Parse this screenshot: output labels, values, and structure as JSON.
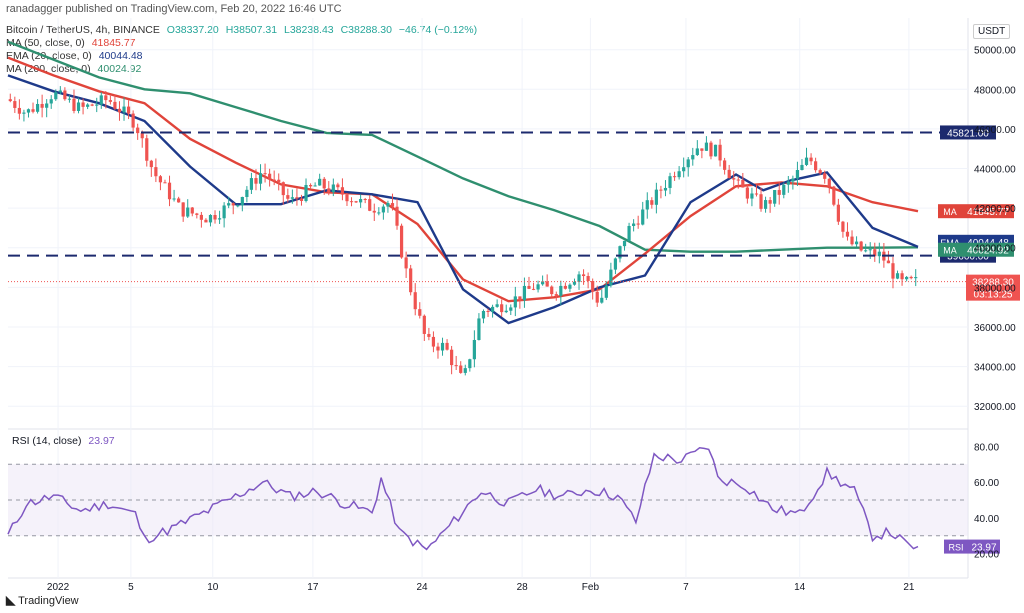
{
  "header": "ranadagger published on TradingView.com, Feb 20, 2022 16:46 UTC",
  "legend": {
    "main": {
      "name": "Bitcoin / TetherUS, 4h, BINANCE",
      "o": "O38337.20",
      "h": "H38507.31",
      "l": "L38238.43",
      "c": "C38288.30",
      "chg": "−46.74 (−0.12%)"
    },
    "ma50": {
      "name": "MA (50, close, 0)",
      "value": "41845.77"
    },
    "ema20": {
      "name": "EMA (20, close, 0)",
      "value": "40044.48"
    },
    "ma200": {
      "name": "MA (200, close, 0)",
      "value": "40024.92"
    },
    "rsi": {
      "name": "RSI (14, close)",
      "value": "23.97"
    }
  },
  "currency": "USDT",
  "footer": "TradingView",
  "colors": {
    "up": "#26a69a",
    "down": "#ef5350",
    "ma50": "#e0443a",
    "ema20": "#1e3a8a",
    "ma200": "#2f8f6f",
    "rsi": "#7e57c2",
    "level": "#1c2a6e"
  },
  "chart_data": [
    {
      "type": "candlestick",
      "title": "Bitcoin / TetherUS, 4h, BINANCE",
      "x_ticks": [
        "2022",
        "5",
        "10",
        "17",
        "24",
        "28",
        "Feb",
        "7",
        "14",
        "21"
      ],
      "y_ticks": [
        "32000.00",
        "34000.00",
        "36000.00",
        "38000.00",
        "40000.00",
        "42000.00",
        "44000.00",
        "46000.00",
        "48000.00",
        "50000.00"
      ],
      "ylim": [
        31000,
        51600
      ],
      "horizontal_levels": [
        {
          "label": "45821.00",
          "value": 45821
        },
        {
          "label": "39600.00",
          "value": 39600
        }
      ],
      "price_labels": [
        {
          "label": "MA",
          "value": "41845.77",
          "y": 41845.77,
          "color": "#e0443a"
        },
        {
          "label": "EMA",
          "value": "40044.48",
          "y": 40300,
          "color": "#1e3a8a"
        },
        {
          "label": "MA",
          "value": "40024.92",
          "y": 39900,
          "color": "#2f8f6f"
        }
      ],
      "last_price": {
        "value": "38288.30",
        "countdown": "03:13:25"
      },
      "series": [
        {
          "name": "MA (50, close, 0)",
          "points": [
            [
              0,
              49600
            ],
            [
              0.05,
              48700
            ],
            [
              0.1,
              47900
            ],
            [
              0.15,
              47300
            ],
            [
              0.2,
              45500
            ],
            [
              0.25,
              44300
            ],
            [
              0.3,
              43200
            ],
            [
              0.35,
              42800
            ],
            [
              0.4,
              42700
            ],
            [
              0.45,
              41200
            ],
            [
              0.5,
              38400
            ],
            [
              0.55,
              37300
            ],
            [
              0.6,
              37500
            ],
            [
              0.65,
              37900
            ],
            [
              0.7,
              39700
            ],
            [
              0.75,
              41600
            ],
            [
              0.8,
              43100
            ],
            [
              0.85,
              43300
            ],
            [
              0.9,
              43100
            ],
            [
              0.95,
              42300
            ],
            [
              1,
              41845
            ]
          ]
        },
        {
          "name": "EMA (20, close, 0)",
          "points": [
            [
              0,
              48700
            ],
            [
              0.05,
              47900
            ],
            [
              0.1,
              47300
            ],
            [
              0.15,
              46400
            ],
            [
              0.2,
              44100
            ],
            [
              0.25,
              42200
            ],
            [
              0.3,
              42200
            ],
            [
              0.35,
              42900
            ],
            [
              0.4,
              42700
            ],
            [
              0.45,
              42300
            ],
            [
              0.5,
              37900
            ],
            [
              0.55,
              36200
            ],
            [
              0.6,
              37000
            ],
            [
              0.65,
              38000
            ],
            [
              0.7,
              38600
            ],
            [
              0.75,
              42300
            ],
            [
              0.8,
              43700
            ],
            [
              0.83,
              42900
            ],
            [
              0.86,
              43400
            ],
            [
              0.9,
              43800
            ],
            [
              0.95,
              41000
            ],
            [
              1,
              40044
            ]
          ]
        },
        {
          "name": "MA (200, close, 0)",
          "points": [
            [
              0,
              50400
            ],
            [
              0.05,
              49500
            ],
            [
              0.1,
              48600
            ],
            [
              0.15,
              48000
            ],
            [
              0.2,
              47800
            ],
            [
              0.25,
              47100
            ],
            [
              0.3,
              46400
            ],
            [
              0.35,
              45800
            ],
            [
              0.4,
              45700
            ],
            [
              0.45,
              44600
            ],
            [
              0.5,
              43500
            ],
            [
              0.55,
              42600
            ],
            [
              0.6,
              41900
            ],
            [
              0.65,
              41100
            ],
            [
              0.7,
              39900
            ],
            [
              0.75,
              39800
            ],
            [
              0.8,
              39800
            ],
            [
              0.85,
              39900
            ],
            [
              0.9,
              40000
            ],
            [
              0.95,
              40000
            ],
            [
              1,
              40024
            ]
          ]
        }
      ],
      "price_path": [
        [
          0,
          47500
        ],
        [
          0.02,
          46800
        ],
        [
          0.05,
          47800
        ],
        [
          0.08,
          47000
        ],
        [
          0.11,
          47500
        ],
        [
          0.14,
          46300
        ],
        [
          0.16,
          43800
        ],
        [
          0.19,
          41900
        ],
        [
          0.22,
          41500
        ],
        [
          0.25,
          42300
        ],
        [
          0.28,
          43900
        ],
        [
          0.31,
          42300
        ],
        [
          0.34,
          43200
        ],
        [
          0.37,
          42700
        ],
        [
          0.4,
          42000
        ],
        [
          0.42,
          42300
        ],
        [
          0.44,
          38300
        ],
        [
          0.46,
          35200
        ],
        [
          0.48,
          35000
        ],
        [
          0.5,
          33200
        ],
        [
          0.52,
          36800
        ],
        [
          0.55,
          37200
        ],
        [
          0.58,
          38100
        ],
        [
          0.6,
          37800
        ],
        [
          0.63,
          38800
        ],
        [
          0.65,
          37200
        ],
        [
          0.68,
          40800
        ],
        [
          0.71,
          42500
        ],
        [
          0.74,
          44300
        ],
        [
          0.76,
          45200
        ],
        [
          0.78,
          44800
        ],
        [
          0.8,
          43200
        ],
        [
          0.83,
          42100
        ],
        [
          0.86,
          43300
        ],
        [
          0.88,
          44500
        ],
        [
          0.9,
          43600
        ],
        [
          0.92,
          40400
        ],
        [
          0.94,
          39800
        ],
        [
          0.96,
          39600
        ],
        [
          0.98,
          38200
        ],
        [
          1,
          38288
        ]
      ]
    },
    {
      "type": "line",
      "title": "RSI (14, close)",
      "y_ticks": [
        "20.00",
        "40.00",
        "60.00",
        "80.00"
      ],
      "ylim": [
        12,
        88
      ],
      "bands": [
        30,
        50,
        70
      ],
      "last_value": {
        "label": "RSI",
        "value": "23.97"
      },
      "series": [
        {
          "name": "RSI (14, close)",
          "points": [
            [
              0,
              30
            ],
            [
              0.02,
              48
            ],
            [
              0.05,
              52
            ],
            [
              0.08,
              44
            ],
            [
              0.11,
              48
            ],
            [
              0.14,
              42
            ],
            [
              0.15,
              28
            ],
            [
              0.18,
              34
            ],
            [
              0.22,
              44
            ],
            [
              0.25,
              52
            ],
            [
              0.28,
              60
            ],
            [
              0.31,
              52
            ],
            [
              0.34,
              55
            ],
            [
              0.37,
              48
            ],
            [
              0.4,
              43
            ],
            [
              0.41,
              62
            ],
            [
              0.43,
              32
            ],
            [
              0.46,
              22
            ],
            [
              0.49,
              38
            ],
            [
              0.52,
              55
            ],
            [
              0.55,
              48
            ],
            [
              0.58,
              56
            ],
            [
              0.61,
              52
            ],
            [
              0.64,
              56
            ],
            [
              0.67,
              52
            ],
            [
              0.69,
              38
            ],
            [
              0.71,
              75
            ],
            [
              0.74,
              72
            ],
            [
              0.77,
              80
            ],
            [
              0.78,
              62
            ],
            [
              0.81,
              58
            ],
            [
              0.84,
              45
            ],
            [
              0.87,
              42
            ],
            [
              0.9,
              65
            ],
            [
              0.93,
              55
            ],
            [
              0.95,
              30
            ],
            [
              0.97,
              32
            ],
            [
              0.99,
              24
            ],
            [
              1,
              23.97
            ]
          ]
        }
      ]
    }
  ]
}
